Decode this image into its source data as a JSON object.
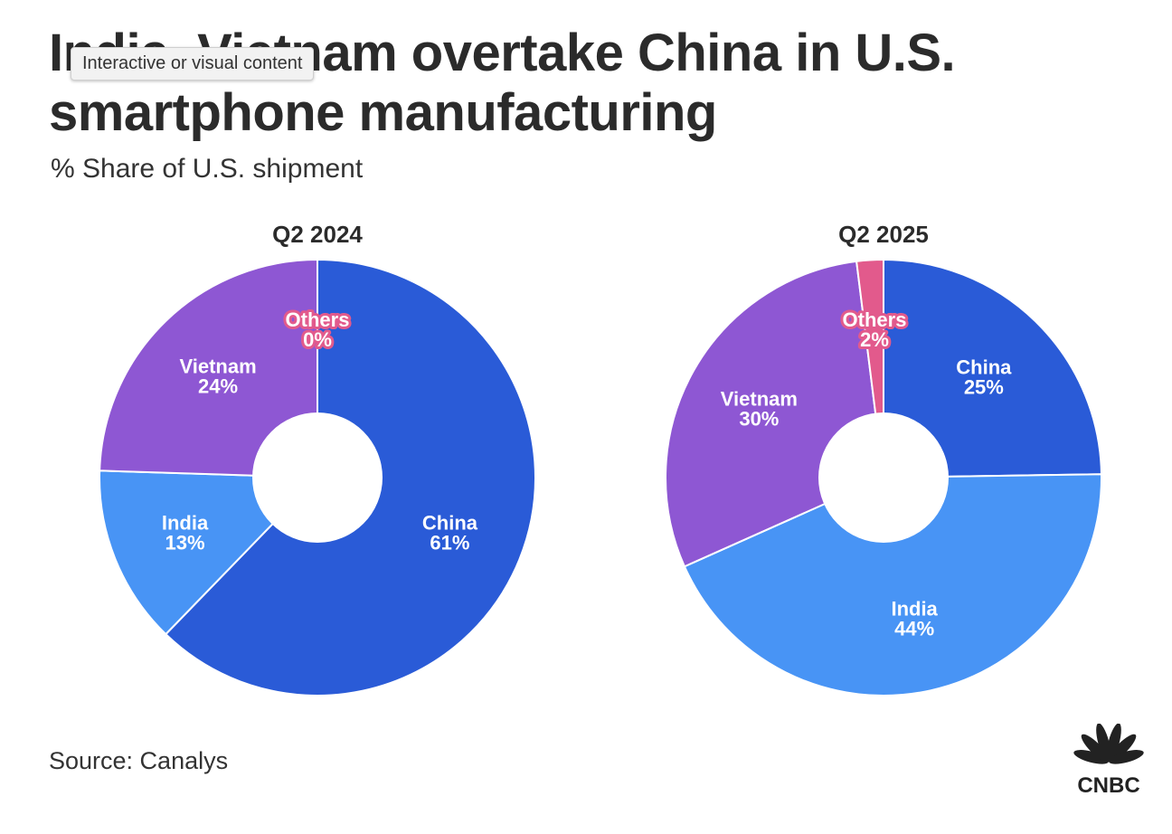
{
  "title": "India, Vietnam overtake China in U.S. smartphone manufacturing",
  "subtitle": "% Share of U.S. shipment",
  "tooltip": "Interactive or visual content",
  "source": "Source: Canalys",
  "logo": "CNBC",
  "colors": {
    "China": "#2a5bd7",
    "India": "#4894f5",
    "Vietnam": "#8e57d3",
    "Others": "#e25a8c"
  },
  "chart_data": [
    {
      "type": "pie",
      "title": "Q2 2024",
      "categories": [
        "China",
        "India",
        "Vietnam",
        "Others"
      ],
      "values": [
        61,
        13,
        24,
        0
      ],
      "labels": [
        "61%",
        "13%",
        "24%",
        "0%"
      ]
    },
    {
      "type": "pie",
      "title": "Q2 2025",
      "categories": [
        "China",
        "India",
        "Vietnam",
        "Others"
      ],
      "values": [
        25,
        44,
        30,
        2
      ],
      "labels": [
        "25%",
        "44%",
        "30%",
        "2%"
      ]
    }
  ]
}
